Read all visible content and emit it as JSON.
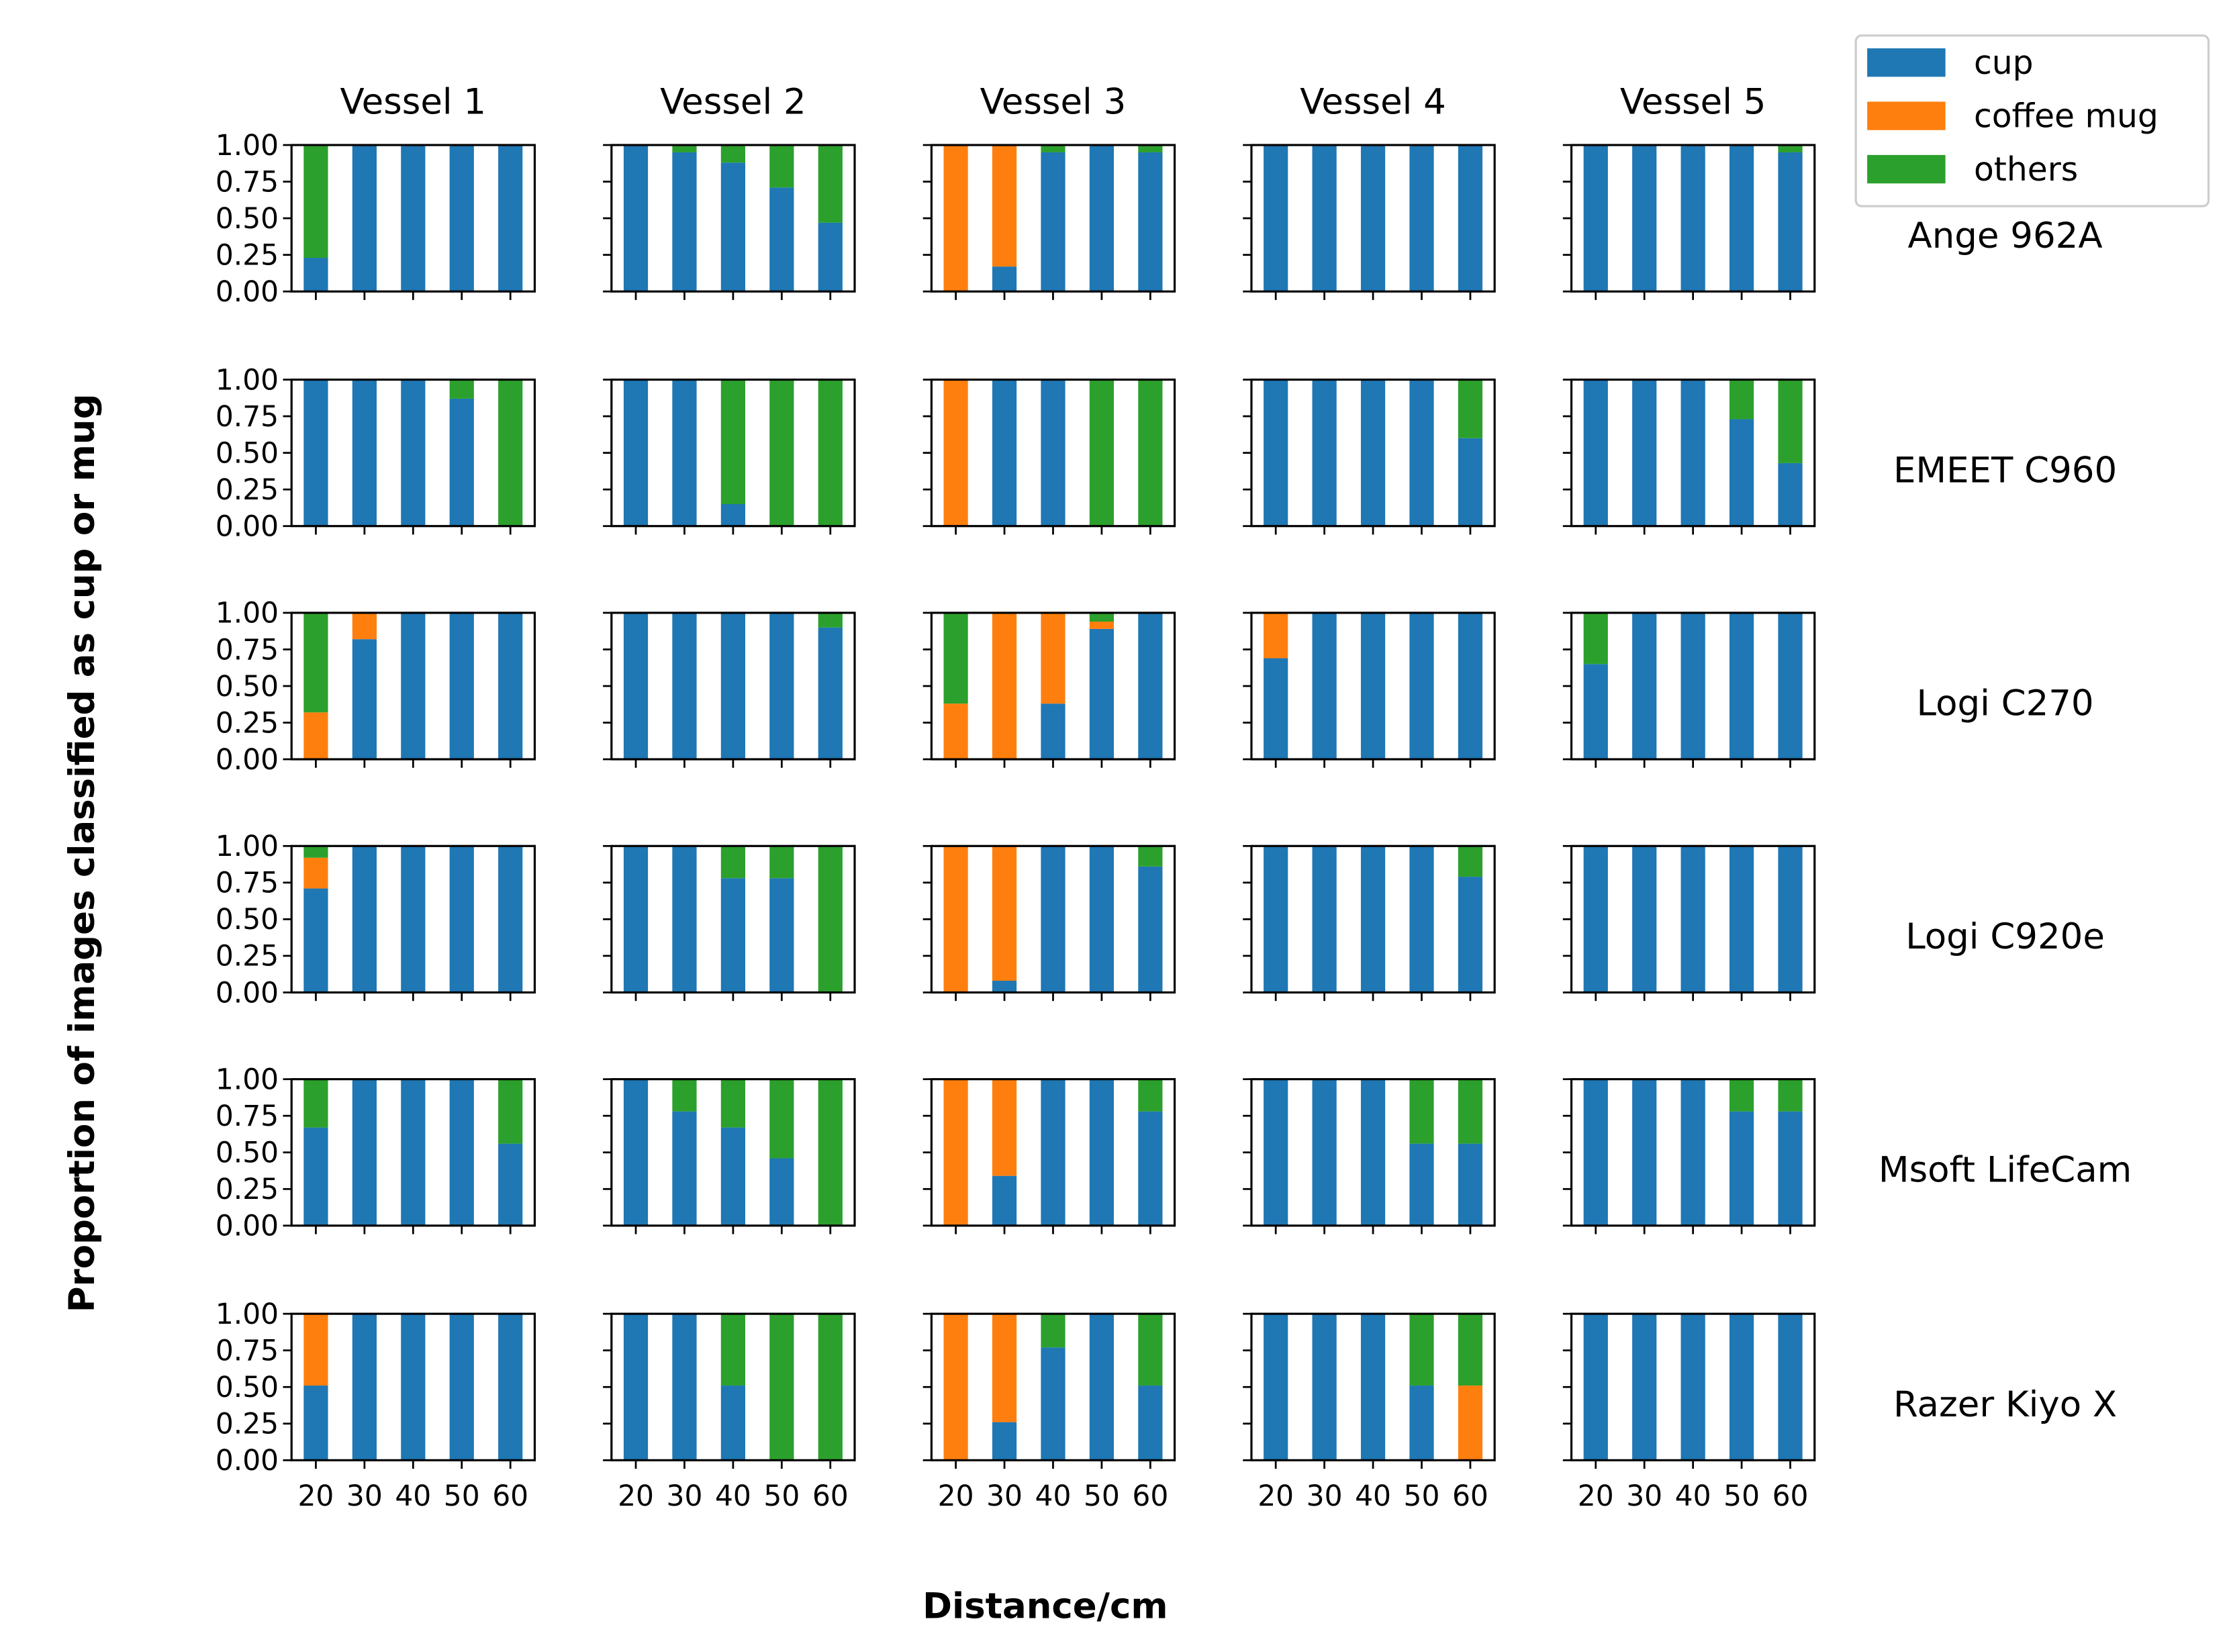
{
  "chart_data": {
    "type": "bar",
    "stacked": true,
    "grid": false,
    "legend_position": "top-right",
    "xlabel": "Distance/cm",
    "ylabel": "Proportion of images classified as cup or mug",
    "columns": [
      "Vessel 1",
      "Vessel 2",
      "Vessel 3",
      "Vessel 4",
      "Vessel 5"
    ],
    "rows": [
      "Ange 962A",
      "EMEET C960",
      "Logi C270",
      "Logi C920e",
      "Msoft LifeCam",
      "Razer Kiyo X"
    ],
    "categories": [
      "20",
      "30",
      "40",
      "50",
      "60"
    ],
    "ylim": [
      0,
      1
    ],
    "yticks": [
      "0.00",
      "0.25",
      "0.50",
      "0.75",
      "1.00"
    ],
    "series": [
      {
        "name": "cup",
        "color": "#1f77b4"
      },
      {
        "name": "coffee mug",
        "color": "#ff7f0e"
      },
      {
        "name": "others",
        "color": "#2ca02c"
      }
    ],
    "panels": [
      [
        {
          "cup": [
            0.23,
            1,
            1,
            1,
            1
          ],
          "coffee mug": [
            0,
            0,
            0,
            0,
            0
          ],
          "others": [
            0.77,
            0,
            0,
            0,
            0
          ]
        },
        {
          "cup": [
            1,
            0.95,
            0.88,
            0.71,
            0.47
          ],
          "coffee mug": [
            0,
            0,
            0,
            0,
            0
          ],
          "others": [
            0,
            0.05,
            0.12,
            0.29,
            0.53
          ]
        },
        {
          "cup": [
            0,
            0.17,
            0.95,
            1,
            0.95
          ],
          "coffee mug": [
            1,
            0.83,
            0,
            0,
            0
          ],
          "others": [
            0,
            0,
            0.05,
            0,
            0.05
          ]
        },
        {
          "cup": [
            1,
            1,
            1,
            1,
            1
          ],
          "coffee mug": [
            0,
            0,
            0,
            0,
            0
          ],
          "others": [
            0,
            0,
            0,
            0,
            0
          ]
        },
        {
          "cup": [
            1,
            1,
            1,
            1,
            0.95
          ],
          "coffee mug": [
            0,
            0,
            0,
            0,
            0
          ],
          "others": [
            0,
            0,
            0,
            0,
            0.05
          ]
        }
      ],
      [
        {
          "cup": [
            1,
            1,
            1,
            0.87,
            0
          ],
          "coffee mug": [
            0,
            0,
            0,
            0,
            0
          ],
          "others": [
            0,
            0,
            0,
            0.13,
            1
          ]
        },
        {
          "cup": [
            1,
            1,
            0.15,
            0,
            0
          ],
          "coffee mug": [
            0,
            0,
            0,
            0,
            0
          ],
          "others": [
            0,
            0,
            0.85,
            1,
            1
          ]
        },
        {
          "cup": [
            0,
            1,
            1,
            0,
            0
          ],
          "coffee mug": [
            1,
            0,
            0,
            0,
            0
          ],
          "others": [
            0,
            0,
            0,
            1,
            1
          ]
        },
        {
          "cup": [
            1,
            1,
            1,
            1,
            0.6
          ],
          "coffee mug": [
            0,
            0,
            0,
            0,
            0
          ],
          "others": [
            0,
            0,
            0,
            0,
            0.4
          ]
        },
        {
          "cup": [
            1,
            1,
            1,
            0.73,
            0.43
          ],
          "coffee mug": [
            0,
            0,
            0,
            0,
            0
          ],
          "others": [
            0,
            0,
            0,
            0.27,
            0.57
          ]
        }
      ],
      [
        {
          "cup": [
            0,
            0.82,
            1,
            1,
            1
          ],
          "coffee mug": [
            0.32,
            0.18,
            0,
            0,
            0
          ],
          "others": [
            0.68,
            0,
            0,
            0,
            0
          ]
        },
        {
          "cup": [
            1,
            1,
            1,
            1,
            0.9
          ],
          "coffee mug": [
            0,
            0,
            0,
            0,
            0
          ],
          "others": [
            0,
            0,
            0,
            0,
            0.1
          ]
        },
        {
          "cup": [
            0,
            0,
            0.38,
            0.89,
            1
          ],
          "coffee mug": [
            0.38,
            1,
            0.62,
            0.05,
            0
          ],
          "others": [
            0.62,
            0,
            0,
            0.06,
            0
          ]
        },
        {
          "cup": [
            0.69,
            1,
            1,
            1,
            1
          ],
          "coffee mug": [
            0.31,
            0,
            0,
            0,
            0
          ],
          "others": [
            0,
            0,
            0,
            0,
            0
          ]
        },
        {
          "cup": [
            0.65,
            1,
            1,
            1,
            1
          ],
          "coffee mug": [
            0,
            0,
            0,
            0,
            0
          ],
          "others": [
            0.35,
            0,
            0,
            0,
            0
          ]
        }
      ],
      [
        {
          "cup": [
            0.71,
            1,
            1,
            1,
            1
          ],
          "coffee mug": [
            0.21,
            0,
            0,
            0,
            0
          ],
          "others": [
            0.08,
            0,
            0,
            0,
            0
          ]
        },
        {
          "cup": [
            1,
            1,
            0.78,
            0.78,
            0
          ],
          "coffee mug": [
            0,
            0,
            0,
            0,
            0
          ],
          "others": [
            0,
            0,
            0.22,
            0.22,
            1
          ]
        },
        {
          "cup": [
            0,
            0.08,
            1,
            1,
            0.86
          ],
          "coffee mug": [
            1,
            0.92,
            0,
            0,
            0
          ],
          "others": [
            0,
            0,
            0,
            0,
            0.14
          ]
        },
        {
          "cup": [
            1,
            1,
            1,
            1,
            0.79
          ],
          "coffee mug": [
            0,
            0,
            0,
            0,
            0
          ],
          "others": [
            0,
            0,
            0,
            0,
            0.21
          ]
        },
        {
          "cup": [
            1,
            1,
            1,
            1,
            1
          ],
          "coffee mug": [
            0,
            0,
            0,
            0,
            0
          ],
          "others": [
            0,
            0,
            0,
            0,
            0
          ]
        }
      ],
      [
        {
          "cup": [
            0.67,
            1,
            1,
            1,
            0.56
          ],
          "coffee mug": [
            0,
            0,
            0,
            0,
            0
          ],
          "others": [
            0.33,
            0,
            0,
            0,
            0.44
          ]
        },
        {
          "cup": [
            1,
            0.78,
            0.67,
            0.46,
            0
          ],
          "coffee mug": [
            0,
            0,
            0,
            0,
            0
          ],
          "others": [
            0,
            0.22,
            0.33,
            0.54,
            1
          ]
        },
        {
          "cup": [
            0,
            0.34,
            1,
            1,
            0.78
          ],
          "coffee mug": [
            1,
            0.66,
            0,
            0,
            0
          ],
          "others": [
            0,
            0,
            0,
            0,
            0.22
          ]
        },
        {
          "cup": [
            1,
            1,
            1,
            0.56,
            0.56
          ],
          "coffee mug": [
            0,
            0,
            0,
            0,
            0
          ],
          "others": [
            0,
            0,
            0,
            0.44,
            0.44
          ]
        },
        {
          "cup": [
            1,
            1,
            1,
            0.78,
            0.78
          ],
          "coffee mug": [
            0,
            0,
            0,
            0,
            0
          ],
          "others": [
            0,
            0,
            0,
            0.22,
            0.22
          ]
        }
      ],
      [
        {
          "cup": [
            0.51,
            1,
            1,
            1,
            1
          ],
          "coffee mug": [
            0.49,
            0,
            0,
            0,
            0
          ],
          "others": [
            0,
            0,
            0,
            0,
            0
          ]
        },
        {
          "cup": [
            1,
            1,
            0.51,
            0,
            0
          ],
          "coffee mug": [
            0,
            0,
            0,
            0,
            0
          ],
          "others": [
            0,
            0,
            0.49,
            1,
            1
          ]
        },
        {
          "cup": [
            0,
            0.26,
            0.77,
            1,
            0.51
          ],
          "coffee mug": [
            1,
            0.74,
            0,
            0,
            0
          ],
          "others": [
            0,
            0,
            0.23,
            0,
            0.49
          ]
        },
        {
          "cup": [
            1,
            1,
            1,
            0.51,
            0
          ],
          "coffee mug": [
            0,
            0,
            0,
            0,
            0.51
          ],
          "others": [
            0,
            0,
            0,
            0.49,
            0.49
          ]
        },
        {
          "cup": [
            1,
            1,
            1,
            1,
            1
          ],
          "coffee mug": [
            0,
            0,
            0,
            0,
            0
          ],
          "others": [
            0,
            0,
            0,
            0,
            0
          ]
        }
      ]
    ]
  }
}
